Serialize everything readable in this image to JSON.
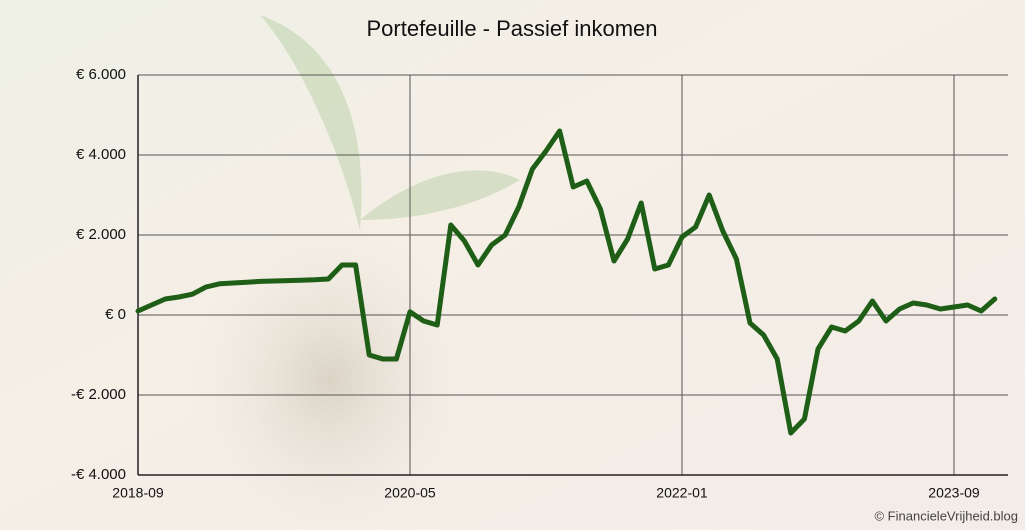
{
  "chart_data": {
    "type": "line",
    "title": "Portefeuille - Passief inkomen",
    "categories": [
      "2018-09",
      null,
      null,
      null,
      null,
      null,
      null,
      null,
      null,
      null,
      null,
      null,
      null,
      null,
      null,
      null,
      null,
      null,
      null,
      null,
      "2020-05",
      null,
      null,
      null,
      null,
      null,
      null,
      null,
      null,
      null,
      null,
      null,
      null,
      null,
      null,
      null,
      null,
      null,
      null,
      null,
      "2022-01",
      null,
      null,
      null,
      null,
      null,
      null,
      null,
      null,
      null,
      null,
      null,
      null,
      null,
      null,
      null,
      null,
      null,
      null,
      null,
      "2023-09",
      null,
      null,
      null
    ],
    "series": [
      {
        "name": "Passief inkomen",
        "color": "#1e5e17",
        "values": [
          100,
          250,
          400,
          450,
          520,
          700,
          780,
          800,
          820,
          840,
          850,
          860,
          870,
          880,
          900,
          1250,
          1250,
          -1000,
          -1100,
          -1100,
          80,
          -150,
          -250,
          2250,
          1850,
          1250,
          1750,
          2000,
          2700,
          3650,
          4100,
          4600,
          3200,
          3350,
          2650,
          1350,
          1900,
          2800,
          1150,
          1250,
          1950,
          2200,
          3000,
          2100,
          1400,
          -200,
          -500,
          -1100,
          -2950,
          -2600,
          -850,
          -300,
          -400,
          -150,
          350,
          -150,
          150,
          300,
          250,
          150,
          200,
          250,
          100,
          400
        ]
      }
    ],
    "ylim": [
      -4000,
      6000
    ],
    "yticks": [
      {
        "value": -4000,
        "label": "-€ 4.000"
      },
      {
        "value": -2000,
        "label": "-€ 2.000"
      },
      {
        "value": 0,
        "label": "€ 0"
      },
      {
        "value": 2000,
        "label": "€ 2.000"
      },
      {
        "value": 4000,
        "label": "€ 4.000"
      },
      {
        "value": 6000,
        "label": "€ 6.000"
      }
    ],
    "grid": true,
    "credit": "© FinancieleVrijheid.blog"
  }
}
